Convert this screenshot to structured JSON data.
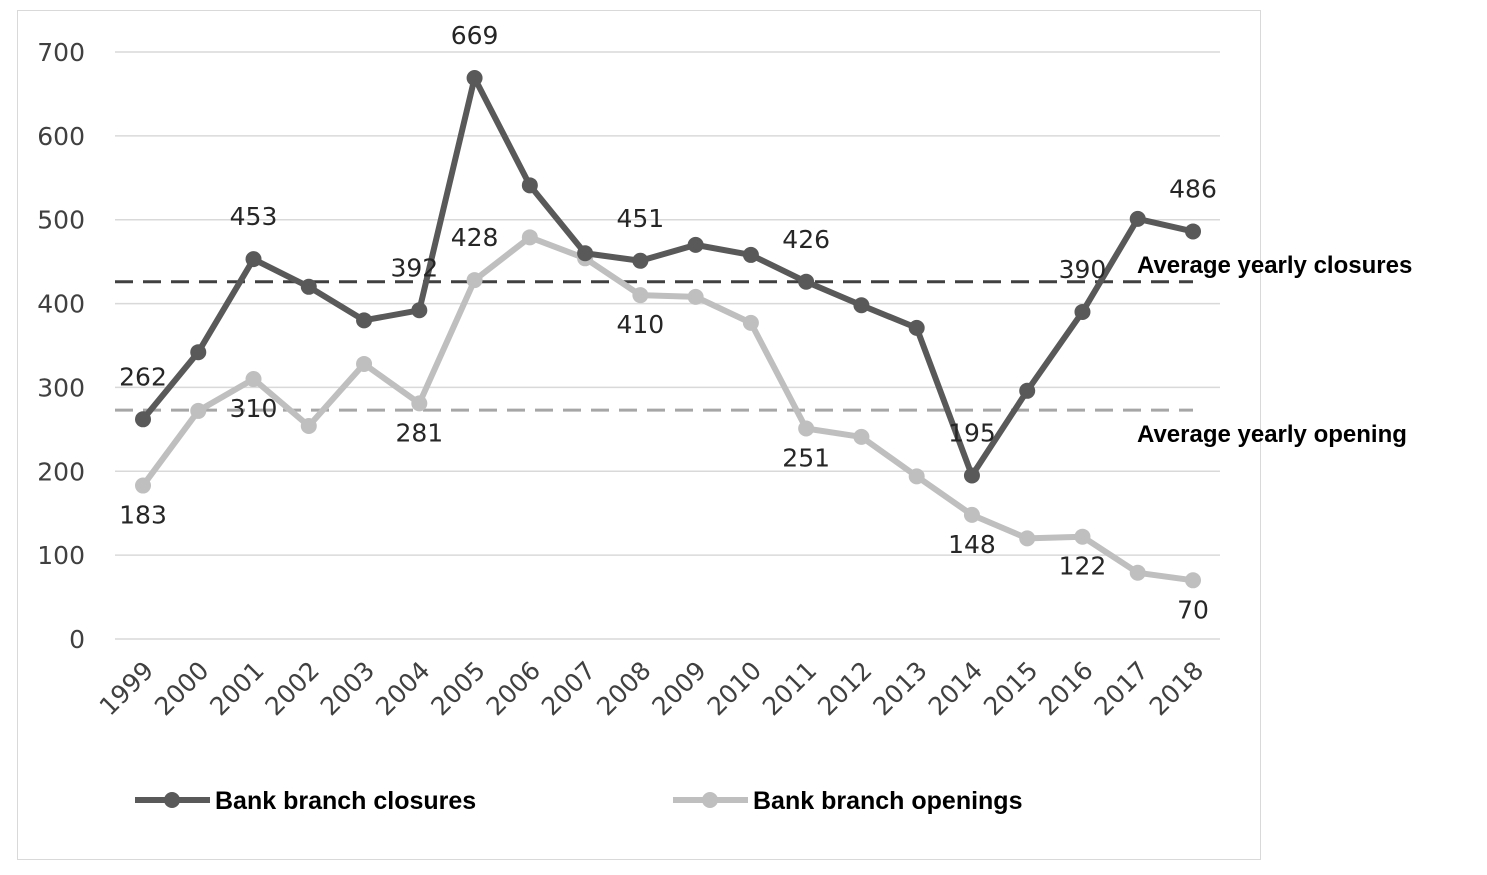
{
  "chart_data": {
    "type": "line",
    "title": "",
    "xlabel": "",
    "ylabel": "",
    "ylim": [
      0,
      700
    ],
    "yticks": [
      0,
      100,
      200,
      300,
      400,
      500,
      600,
      700
    ],
    "grid": true,
    "x": [
      "1999",
      "2000",
      "2001",
      "2002",
      "2003",
      "2004",
      "2005",
      "2006",
      "2007",
      "2008",
      "2009",
      "2010",
      "2011",
      "2012",
      "2013",
      "2014",
      "2015",
      "2016",
      "2017",
      "2018"
    ],
    "series": [
      {
        "name": "Bank branch closures",
        "color": "#595959",
        "values": [
          262,
          342,
          453,
          420,
          380,
          392,
          669,
          541,
          460,
          451,
          470,
          458,
          426,
          398,
          371,
          195,
          296,
          390,
          501,
          486
        ]
      },
      {
        "name": "Bank branch openings",
        "color": "#bfbfbf",
        "values": [
          183,
          272,
          310,
          254,
          328,
          281,
          428,
          479,
          454,
          410,
          408,
          377,
          251,
          241,
          194,
          148,
          120,
          122,
          79,
          70
        ]
      }
    ],
    "averages": [
      {
        "label": "Average yearly closures",
        "value": 426,
        "color": "#404040"
      },
      {
        "label": "Average yearly opening",
        "value": 273,
        "color": "#a6a6a6"
      }
    ],
    "data_labels": [
      {
        "series": 0,
        "year": "1999",
        "text": "262",
        "position": "above"
      },
      {
        "series": 0,
        "year": "2001",
        "text": "453",
        "position": "above"
      },
      {
        "series": 0,
        "year": "2004",
        "text": "392",
        "position": "above-left"
      },
      {
        "series": 0,
        "year": "2005",
        "text": "669",
        "position": "above"
      },
      {
        "series": 0,
        "year": "2008",
        "text": "451",
        "position": "above"
      },
      {
        "series": 0,
        "year": "2011",
        "text": "426",
        "position": "above"
      },
      {
        "series": 0,
        "year": "2014",
        "text": "195",
        "position": "above"
      },
      {
        "series": 0,
        "year": "2016",
        "text": "390",
        "position": "above"
      },
      {
        "series": 0,
        "year": "2018",
        "text": "486",
        "position": "above"
      },
      {
        "series": 1,
        "year": "1999",
        "text": "183",
        "position": "below"
      },
      {
        "series": 1,
        "year": "2001",
        "text": "310",
        "position": "below"
      },
      {
        "series": 1,
        "year": "2004",
        "text": "281",
        "position": "below"
      },
      {
        "series": 1,
        "year": "2005",
        "text": "428",
        "position": "above"
      },
      {
        "series": 1,
        "year": "2008",
        "text": "410",
        "position": "below"
      },
      {
        "series": 1,
        "year": "2011",
        "text": "251",
        "position": "below"
      },
      {
        "series": 1,
        "year": "2014",
        "text": "148",
        "position": "below"
      },
      {
        "series": 1,
        "year": "2016",
        "text": "122",
        "position": "below"
      },
      {
        "series": 1,
        "year": "2018",
        "text": "70",
        "position": "below"
      }
    ],
    "legend": "bottom"
  }
}
